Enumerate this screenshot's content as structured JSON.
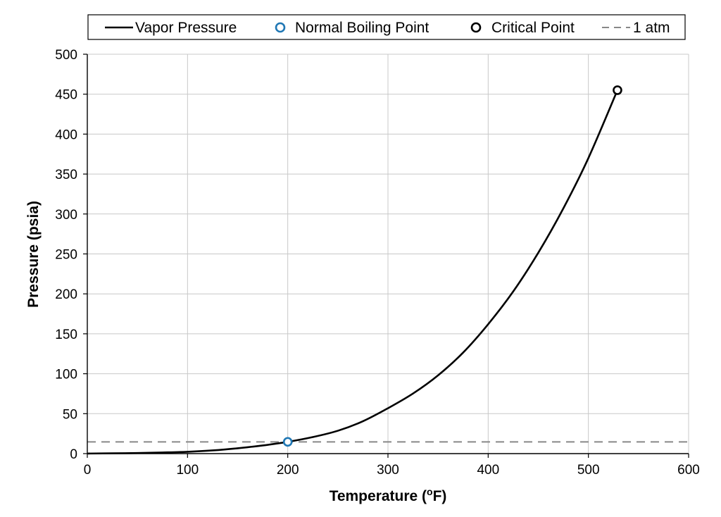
{
  "chart_data": {
    "type": "line",
    "xlabel": "Temperature (",
    "xlabel_sup": "o",
    "xlabel_end": "F)",
    "ylabel": "Pressure (psia)",
    "xlim": [
      0,
      600
    ],
    "ylim": [
      0,
      500
    ],
    "xticks": [
      0,
      100,
      200,
      300,
      400,
      500,
      600
    ],
    "yticks": [
      0,
      50,
      100,
      150,
      200,
      250,
      300,
      350,
      400,
      450,
      500
    ],
    "grid": true,
    "legend_position": "top",
    "series": [
      {
        "name": "Vapor Pressure",
        "style": "solid",
        "color": "#000000",
        "x": [
          0,
          25,
          50,
          75,
          100,
          125,
          150,
          175,
          200,
          225,
          250,
          275,
          300,
          325,
          350,
          375,
          400,
          425,
          450,
          475,
          500,
          529
        ],
        "y": [
          0.1,
          0.35,
          0.7,
          1.4,
          2.3,
          4.0,
          6.7,
          10.2,
          14.7,
          20.7,
          28.6,
          40.5,
          56.8,
          75.2,
          98.0,
          126.5,
          162.0,
          203.0,
          251.5,
          307.0,
          370.0,
          455.0
        ]
      },
      {
        "name": "Normal Boiling Point",
        "style": "marker",
        "color": "#1f77b4",
        "x": [
          200
        ],
        "y": [
          14.7
        ]
      },
      {
        "name": "Critical Point",
        "style": "marker",
        "color": "#000000",
        "x": [
          529
        ],
        "y": [
          455
        ]
      },
      {
        "name": "1 atm",
        "style": "dashed",
        "color": "#888888",
        "x": [
          0,
          600
        ],
        "y": [
          14.7,
          14.7
        ]
      }
    ]
  }
}
